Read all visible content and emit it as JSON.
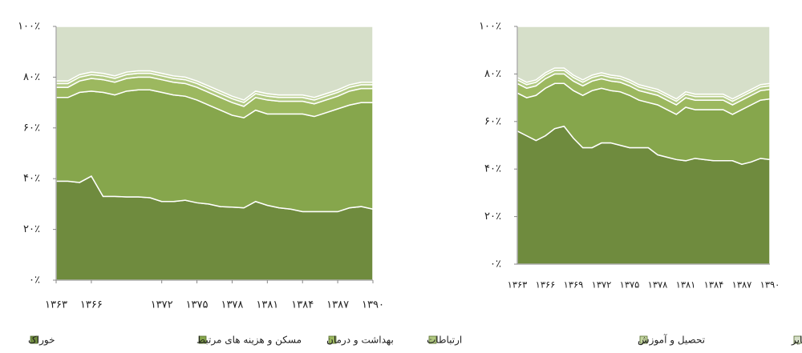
{
  "chart_data": [
    {
      "type": "area",
      "stacked": true,
      "x": [
        1363,
        1364,
        1365,
        1366,
        1367,
        1368,
        1369,
        1370,
        1371,
        1372,
        1373,
        1374,
        1375,
        1376,
        1377,
        1378,
        1379,
        1380,
        1381,
        1382,
        1383,
        1384,
        1385,
        1386,
        1387,
        1388,
        1389,
        1390
      ],
      "xlim": [
        1363,
        1390
      ],
      "xticks": [
        {
          "value": 1363,
          "label": "۱۳۶۳"
        },
        {
          "value": 1366,
          "label": "۱۳۶۶"
        },
        {
          "value": 1372,
          "label": "۱۳۷۲"
        },
        {
          "value": 1375,
          "label": "۱۳۷۵"
        },
        {
          "value": 1378,
          "label": "۱۳۷۸"
        },
        {
          "value": 1381,
          "label": "۱۳۸۱"
        },
        {
          "value": 1384,
          "label": "۱۳۸۴"
        },
        {
          "value": 1387,
          "label": "۱۳۸۷"
        },
        {
          "value": 1390,
          "label": "۱۳۹۰"
        }
      ],
      "ylim": [
        0,
        100
      ],
      "yticks": [
        {
          "value": 0,
          "label": "۰٪"
        },
        {
          "value": 20,
          "label": "۲۰٪"
        },
        {
          "value": 40,
          "label": "۴۰٪"
        },
        {
          "value": 60,
          "label": "۶۰٪"
        },
        {
          "value": 80,
          "label": "۸۰٪"
        },
        {
          "value": 100,
          "label": "۱۰۰٪"
        }
      ],
      "series": [
        {
          "name": "خوراک",
          "color": "#6f8b3e",
          "values": [
            39,
            39,
            38.5,
            41,
            33,
            33,
            32.8,
            32.8,
            32.5,
            31,
            31,
            31.5,
            30.5,
            30,
            29,
            28.8,
            28.5,
            31,
            29.5,
            28.5,
            28,
            27,
            27,
            27,
            27,
            28.5,
            29,
            28
          ]
        },
        {
          "name": "مسکن و هزینه های مرتبط",
          "color": "#86a64c",
          "values": [
            33,
            33,
            35.5,
            33.5,
            41,
            40,
            41.7,
            42.2,
            42.5,
            43,
            42,
            41,
            40.5,
            39,
            38,
            36.2,
            35.5,
            36,
            36,
            37,
            37.5,
            38.5,
            37.5,
            39,
            40.5,
            40.5,
            41,
            42
          ]
        },
        {
          "name": "بهداشت و درمان",
          "color": "#9cb85f",
          "values": [
            4,
            4,
            4.5,
            5,
            5,
            5,
            5,
            5,
            5,
            5,
            5,
            5,
            5,
            5,
            5,
            5,
            4.5,
            5,
            5.5,
            5,
            5,
            5,
            5,
            5,
            5,
            5.5,
            5.5,
            5.5
          ]
        },
        {
          "name": "ارتباطات",
          "color": "#b1c981",
          "values": [
            1.5,
            1.5,
            1.5,
            1.5,
            1.5,
            1.5,
            1.5,
            1.5,
            1.5,
            1.5,
            1.5,
            1.5,
            1.5,
            1.5,
            1.5,
            1.5,
            1.5,
            1.5,
            1.5,
            1.5,
            1.5,
            1.5,
            1.5,
            1.5,
            1.5,
            1.5,
            1.5,
            1.5
          ]
        },
        {
          "name": "تحصیل و آموزش",
          "color": "#c4d6a0",
          "values": [
            1,
            1,
            1,
            1,
            1,
            1,
            1,
            1,
            1,
            1,
            1,
            1,
            1,
            1,
            1,
            1,
            1,
            1,
            1,
            1,
            1,
            1,
            1,
            1,
            1,
            1,
            1,
            1
          ]
        },
        {
          "name": "سایر",
          "color": "#d6dfc9",
          "values": [
            21.5,
            21.5,
            19,
            18,
            18.5,
            19.5,
            18,
            17.5,
            17.5,
            18.5,
            19.5,
            20,
            21.5,
            23.5,
            25.5,
            27.5,
            29,
            25.5,
            26.5,
            27,
            27,
            27,
            28,
            26.5,
            25,
            23,
            22,
            22
          ]
        }
      ]
    },
    {
      "type": "area",
      "stacked": true,
      "x": [
        1363,
        1364,
        1365,
        1366,
        1367,
        1368,
        1369,
        1370,
        1371,
        1372,
        1373,
        1374,
        1375,
        1376,
        1377,
        1378,
        1379,
        1380,
        1381,
        1382,
        1383,
        1384,
        1385,
        1386,
        1387,
        1388,
        1389,
        1390
      ],
      "xlim": [
        1363,
        1390
      ],
      "xticks": [
        {
          "value": 1363,
          "label": "۱۳۶۳"
        },
        {
          "value": 1366,
          "label": "۱۳۶۶"
        },
        {
          "value": 1369,
          "label": "۱۳۶۹"
        },
        {
          "value": 1372,
          "label": "۱۳۷۲"
        },
        {
          "value": 1375,
          "label": "۱۳۷۵"
        },
        {
          "value": 1378,
          "label": "۱۳۷۸"
        },
        {
          "value": 1381,
          "label": "۱۳۸۱"
        },
        {
          "value": 1384,
          "label": "۱۳۸۴"
        },
        {
          "value": 1387,
          "label": "۱۳۸۷"
        },
        {
          "value": 1390,
          "label": "۱۳۹۰"
        }
      ],
      "ylim": [
        0,
        100
      ],
      "yticks": [
        {
          "value": 0,
          "label": "۰٪"
        },
        {
          "value": 20,
          "label": "۲۰٪"
        },
        {
          "value": 40,
          "label": "۴۰٪"
        },
        {
          "value": 60,
          "label": "۶۰٪"
        },
        {
          "value": 80,
          "label": "۸۰٪"
        },
        {
          "value": 100,
          "label": "۱۰۰٪"
        }
      ],
      "series": [
        {
          "color": "#6f8b3e",
          "values": [
            56,
            54,
            52,
            54,
            57,
            58,
            53,
            49,
            49,
            51,
            51,
            50,
            49,
            49,
            49,
            46,
            45,
            44,
            43.5,
            44.5,
            44,
            43.5,
            43.5,
            43.5,
            42,
            43,
            44.5,
            44
          ]
        },
        {
          "color": "#86a64c",
          "values": [
            16,
            16,
            19,
            20,
            19,
            18,
            20,
            22,
            24,
            23,
            22,
            22.5,
            22,
            20,
            19,
            21,
            20,
            19,
            22.5,
            20.5,
            21,
            21.5,
            21.5,
            19.5,
            23,
            24,
            24.5,
            25.5
          ]
        },
        {
          "color": "#9cb85f",
          "values": [
            4,
            4,
            4,
            4,
            4,
            4,
            4,
            4,
            4,
            4,
            4,
            4,
            4,
            4,
            4,
            4,
            4,
            4,
            4,
            4,
            4,
            4,
            4,
            4,
            4,
            4,
            4,
            4
          ]
        },
        {
          "color": "#b1c981",
          "values": [
            1.5,
            1.5,
            1.5,
            1.5,
            1.5,
            1.5,
            1.5,
            1.5,
            1.5,
            1.5,
            1.5,
            1.5,
            1.5,
            1.5,
            1.5,
            1.5,
            1.5,
            1.5,
            1.5,
            1.5,
            1.5,
            1.5,
            1.5,
            1.5,
            1.5,
            1.5,
            1.5,
            1.5
          ]
        },
        {
          "color": "#c4d6a0",
          "values": [
            1,
            1,
            1,
            1,
            1,
            1,
            1,
            1,
            1,
            1,
            1,
            1,
            1,
            1,
            1,
            1,
            1,
            1,
            1,
            1,
            1,
            1,
            1,
            1,
            1,
            1,
            1,
            1
          ]
        },
        {
          "color": "#d6dfc9",
          "values": [
            21.5,
            23.5,
            22.5,
            19.5,
            17.5,
            17.5,
            20.5,
            22.5,
            20.5,
            19.5,
            20.5,
            21,
            22.5,
            24.5,
            25.5,
            26.5,
            28.5,
            30.5,
            27.5,
            28.5,
            28.5,
            28.5,
            28.5,
            30.5,
            28.5,
            26.5,
            24.5,
            24
          ]
        }
      ]
    }
  ]
}
